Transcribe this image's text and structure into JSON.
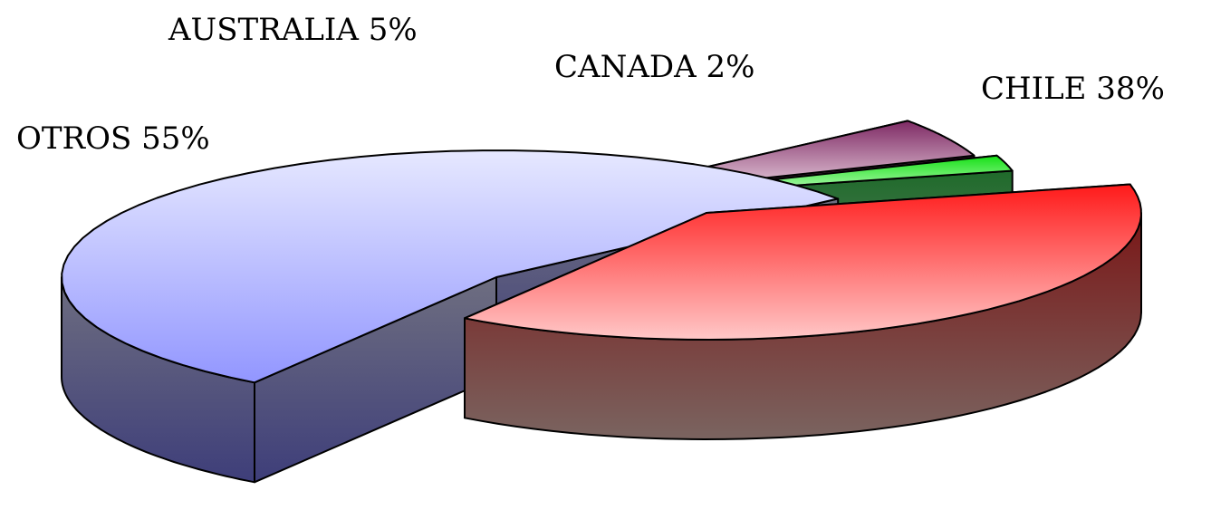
{
  "chart_data": {
    "type": "pie",
    "style": "3d-exploded",
    "slices": [
      {
        "label": "CHILE",
        "value": 38,
        "display": "CHILE 38%",
        "color": "#ff2020"
      },
      {
        "label": "OTROS",
        "value": 55,
        "display": "OTROS 55%",
        "color": "#9a9dff"
      },
      {
        "label": "AUSTRALIA",
        "value": 5,
        "display": "AUSTRALIA 5%",
        "color": "#8b3a6a"
      },
      {
        "label": "CANADA",
        "value": 2,
        "display": "CANADA 2%",
        "color": "#20e020"
      }
    ],
    "legend": "none"
  }
}
